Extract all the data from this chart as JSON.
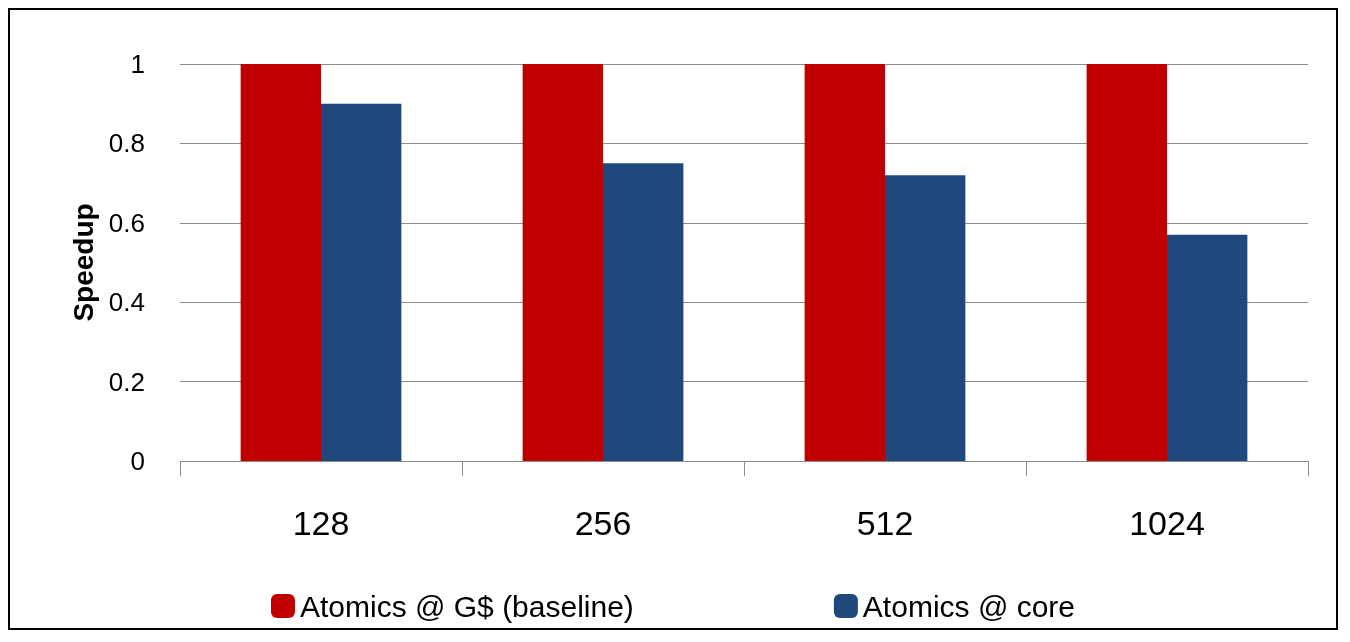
{
  "chart_data": {
    "type": "bar",
    "ylabel": "Speedup",
    "categories": [
      "128",
      "256",
      "512",
      "1024"
    ],
    "series": [
      {
        "name": "Atomics @ G$ (baseline)",
        "color": "#c00000",
        "values": [
          1,
          1,
          1,
          1
        ]
      },
      {
        "name": "Atomics @ core",
        "color": "#1f497d",
        "values": [
          0.9,
          0.75,
          0.72,
          0.57
        ]
      }
    ],
    "ylim": [
      0,
      1
    ],
    "yticks": [
      0,
      0.2,
      0.4,
      0.6,
      0.8,
      1
    ],
    "grid": "y",
    "legend": "bottom"
  }
}
